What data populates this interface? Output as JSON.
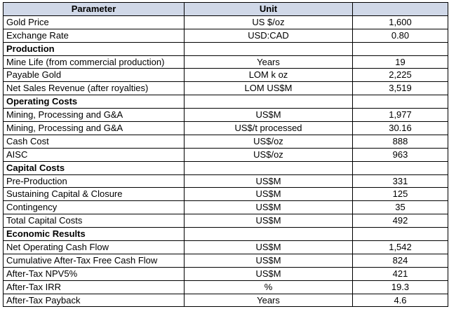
{
  "table": {
    "headers": [
      "Parameter",
      "Unit",
      ""
    ],
    "rows": [
      {
        "type": "data",
        "parameter": "Gold Price",
        "unit": "US $/oz",
        "value": "1,600"
      },
      {
        "type": "data",
        "parameter": "Exchange Rate",
        "unit": "USD:CAD",
        "value": "0.80"
      },
      {
        "type": "section",
        "parameter": "Production"
      },
      {
        "type": "data",
        "parameter": "Mine Life (from commercial production)",
        "unit": "Years",
        "value": "19"
      },
      {
        "type": "data",
        "parameter": "Payable Gold",
        "unit": "LOM k oz",
        "value": "2,225"
      },
      {
        "type": "data",
        "parameter": "Net Sales Revenue (after royalties)",
        "unit": "LOM US$M",
        "value": "3,519"
      },
      {
        "type": "section",
        "parameter": "Operating Costs"
      },
      {
        "type": "data",
        "parameter": "Mining, Processing and G&A",
        "unit": "US$M",
        "value": "1,977"
      },
      {
        "type": "data",
        "parameter": "Mining, Processing and G&A",
        "unit": "US$/t processed",
        "value": "30.16"
      },
      {
        "type": "data",
        "parameter": "Cash Cost",
        "unit": "US$/oz",
        "value": "888"
      },
      {
        "type": "data",
        "parameter": "AISC",
        "unit": "US$/oz",
        "value": "963"
      },
      {
        "type": "section",
        "parameter": "Capital Costs"
      },
      {
        "type": "data",
        "parameter": "Pre-Production",
        "unit": "US$M",
        "value": "331"
      },
      {
        "type": "data",
        "parameter": "Sustaining Capital & Closure",
        "unit": "US$M",
        "value": "125"
      },
      {
        "type": "data",
        "parameter": "Contingency",
        "unit": "US$M",
        "value": "35"
      },
      {
        "type": "data",
        "parameter": "Total Capital Costs",
        "unit": "US$M",
        "value": "492"
      },
      {
        "type": "section",
        "parameter": "Economic Results"
      },
      {
        "type": "data",
        "parameter": "Net Operating Cash Flow",
        "unit": "US$M",
        "value": "1,542"
      },
      {
        "type": "data",
        "parameter": "Cumulative After-Tax Free Cash Flow",
        "unit": "US$M",
        "value": "824"
      },
      {
        "type": "data",
        "parameter": "After-Tax NPV5%",
        "unit": "US$M",
        "value": "421"
      },
      {
        "type": "data",
        "parameter": "After-Tax IRR",
        "unit": "%",
        "value": "19.3"
      },
      {
        "type": "data",
        "parameter": "After-Tax Payback",
        "unit": "Years",
        "value": "4.6"
      }
    ]
  },
  "colors": {
    "header_background": "#d0d8e8",
    "border": "#000000"
  }
}
